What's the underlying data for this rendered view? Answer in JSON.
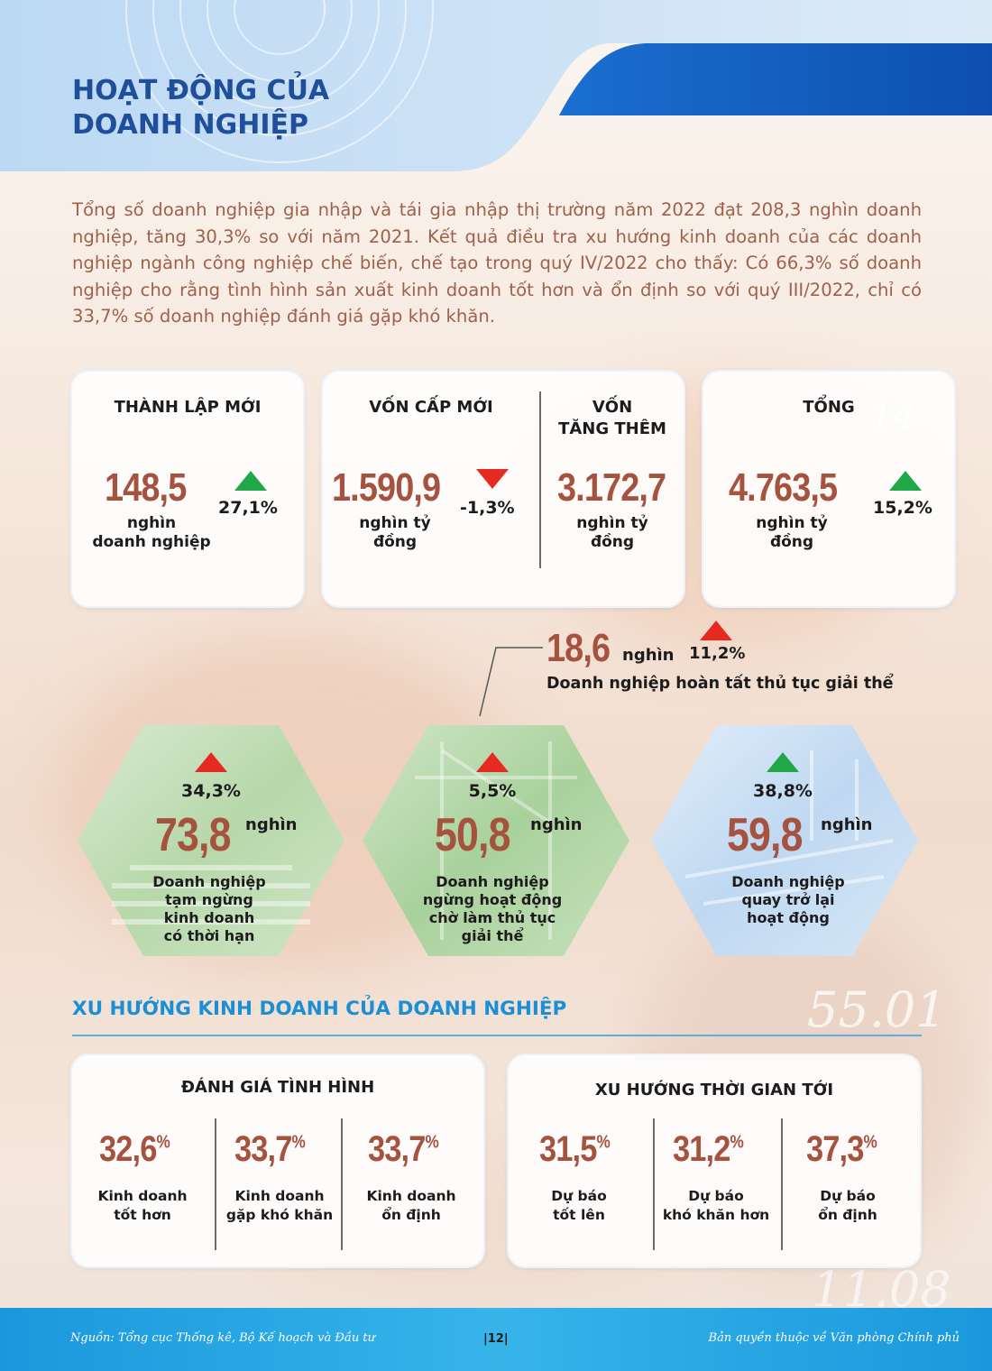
{
  "title_line1": "HOẠT ĐỘNG CỦA",
  "title_line2": "DOANH NGHIỆP",
  "intro": "Tổng số doanh nghiệp gia nhập và tái gia nhập thị trường năm 2022 đạt 208,3 nghìn doanh nghiệp, tăng 30,3% so với năm 2021. Kết quả điều tra xu hướng kinh doanh của các doanh nghiệp ngành công nghiệp chế biến, chế tạo trong quý IV/2022 cho thấy: Có 66,3% số doanh nghiệp cho rằng tình hình sản xuất kinh doanh tốt hơn và ổn định so với quý III/2022, chỉ có 33,7% số doanh nghiệp đánh giá gặp khó khăn.",
  "background_numbers": [
    "14",
    "55.01",
    "11.08"
  ],
  "colors": {
    "accent_blue": "#1f4e9a",
    "number_brown": "#a5523f",
    "up_green": "#20a848",
    "up_red": "#e52a22",
    "section_blue": "#1a8fd6"
  },
  "stats": {
    "new_firms": {
      "header": "THÀNH LẬP MỚI",
      "value": "148,5",
      "unit_line1": "nghìn",
      "unit_line2": "doanh nghiệp",
      "change": "27,1%",
      "trend_icon": "triangle-up-green"
    },
    "new_capital": {
      "header": "VỐN CẤP MỚI",
      "value": "1.590,9",
      "unit_line1": "nghìn tỷ",
      "unit_line2": "đồng",
      "change": "-1,3%",
      "trend_icon": "triangle-down-red"
    },
    "added_capital": {
      "header_line1": "VỐN",
      "header_line2": "TĂNG THÊM",
      "value": "3.172,7",
      "unit_line1": "nghìn tỷ",
      "unit_line2": "đồng"
    },
    "total": {
      "header": "TỔNG",
      "value": "4.763,5",
      "unit_line1": "nghìn tỷ",
      "unit_line2": "đồng",
      "change": "15,2%",
      "trend_icon": "triangle-up-green"
    }
  },
  "dissolved": {
    "value": "18,6",
    "unit": "nghìn",
    "change": "11,2%",
    "label": "Doanh nghiệp hoàn tất thủ tục giải thể",
    "trend_icon": "triangle-up-red"
  },
  "hexes": [
    {
      "change": "34,3%",
      "value": "73,8",
      "unit": "nghìn",
      "label_lines": [
        "Doanh nghiệp",
        "tạm ngừng",
        "kinh doanh",
        "có thời hạn"
      ],
      "trend_icon": "triangle-up-red"
    },
    {
      "change": "5,5%",
      "value": "50,8",
      "unit": "nghìn",
      "label_lines": [
        "Doanh nghiệp",
        "ngừng hoạt động",
        "chờ làm thủ tục",
        "giải thể"
      ],
      "trend_icon": "triangle-up-red"
    },
    {
      "change": "38,8%",
      "value": "59,8",
      "unit": "nghìn",
      "label_lines": [
        "Doanh nghiệp",
        "quay trở lại",
        "hoạt động"
      ],
      "trend_icon": "triangle-up-green"
    }
  ],
  "trend_section": {
    "title": "XU HƯỚNG KINH DOANH CỦA DOANH NGHIỆP",
    "assessment": {
      "header": "ĐÁNH GIÁ TÌNH HÌNH",
      "items": [
        {
          "value": "32,6",
          "sym": "%",
          "label_line1": "Kinh doanh",
          "label_line2": "tốt hơn"
        },
        {
          "value": "33,7",
          "sym": "%",
          "label_line1": "Kinh doanh",
          "label_line2": "gặp khó khăn"
        },
        {
          "value": "33,7",
          "sym": "%",
          "label_line1": "Kinh doanh",
          "label_line2": "ổn định"
        }
      ]
    },
    "outlook": {
      "header": "XU HƯỚNG THỜI GIAN TỚI",
      "items": [
        {
          "value": "31,5",
          "sym": "%",
          "label_line1": "Dự báo",
          "label_line2": "tốt lên"
        },
        {
          "value": "31,2",
          "sym": "%",
          "label_line1": "Dự báo",
          "label_line2": "khó khăn hơn"
        },
        {
          "value": "37,3",
          "sym": "%",
          "label_line1": "Dự báo",
          "label_line2": "ổn định"
        }
      ]
    }
  },
  "footer": {
    "source": "Nguồn: Tổng cục Thống kê, Bộ Kế hoạch và Đầu tư",
    "page": "|12|",
    "copyright": "Bản quyền thuộc về Văn phòng Chính phủ"
  }
}
